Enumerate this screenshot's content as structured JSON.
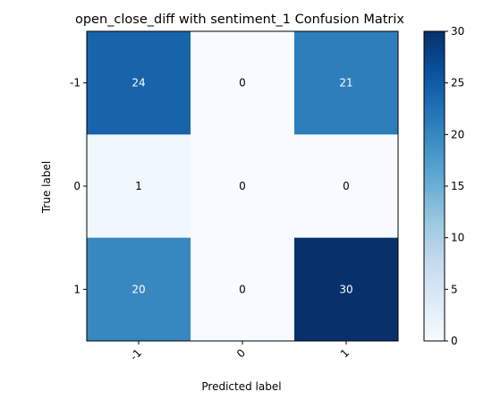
{
  "chart_data": {
    "type": "heatmap",
    "title": "open_close_diff with sentiment_1 Confusion Matrix",
    "xlabel": "Predicted label",
    "ylabel": "True label",
    "x_categories": [
      "-1",
      "0",
      "1"
    ],
    "y_categories": [
      "-1",
      "0",
      "1"
    ],
    "values": [
      [
        24,
        0,
        21
      ],
      [
        1,
        0,
        0
      ],
      [
        20,
        0,
        30
      ]
    ],
    "colormap": "Blues",
    "colorbar": {
      "min": 0,
      "max": 30,
      "ticks": [
        0,
        5,
        10,
        15,
        20,
        25,
        30
      ]
    },
    "grid": false,
    "colors": {
      "cmap_low": "#f7fbff",
      "cmap_high": "#08306b",
      "text_dark": "#000000",
      "text_light": "#ffffff",
      "axis": "#000000"
    }
  }
}
